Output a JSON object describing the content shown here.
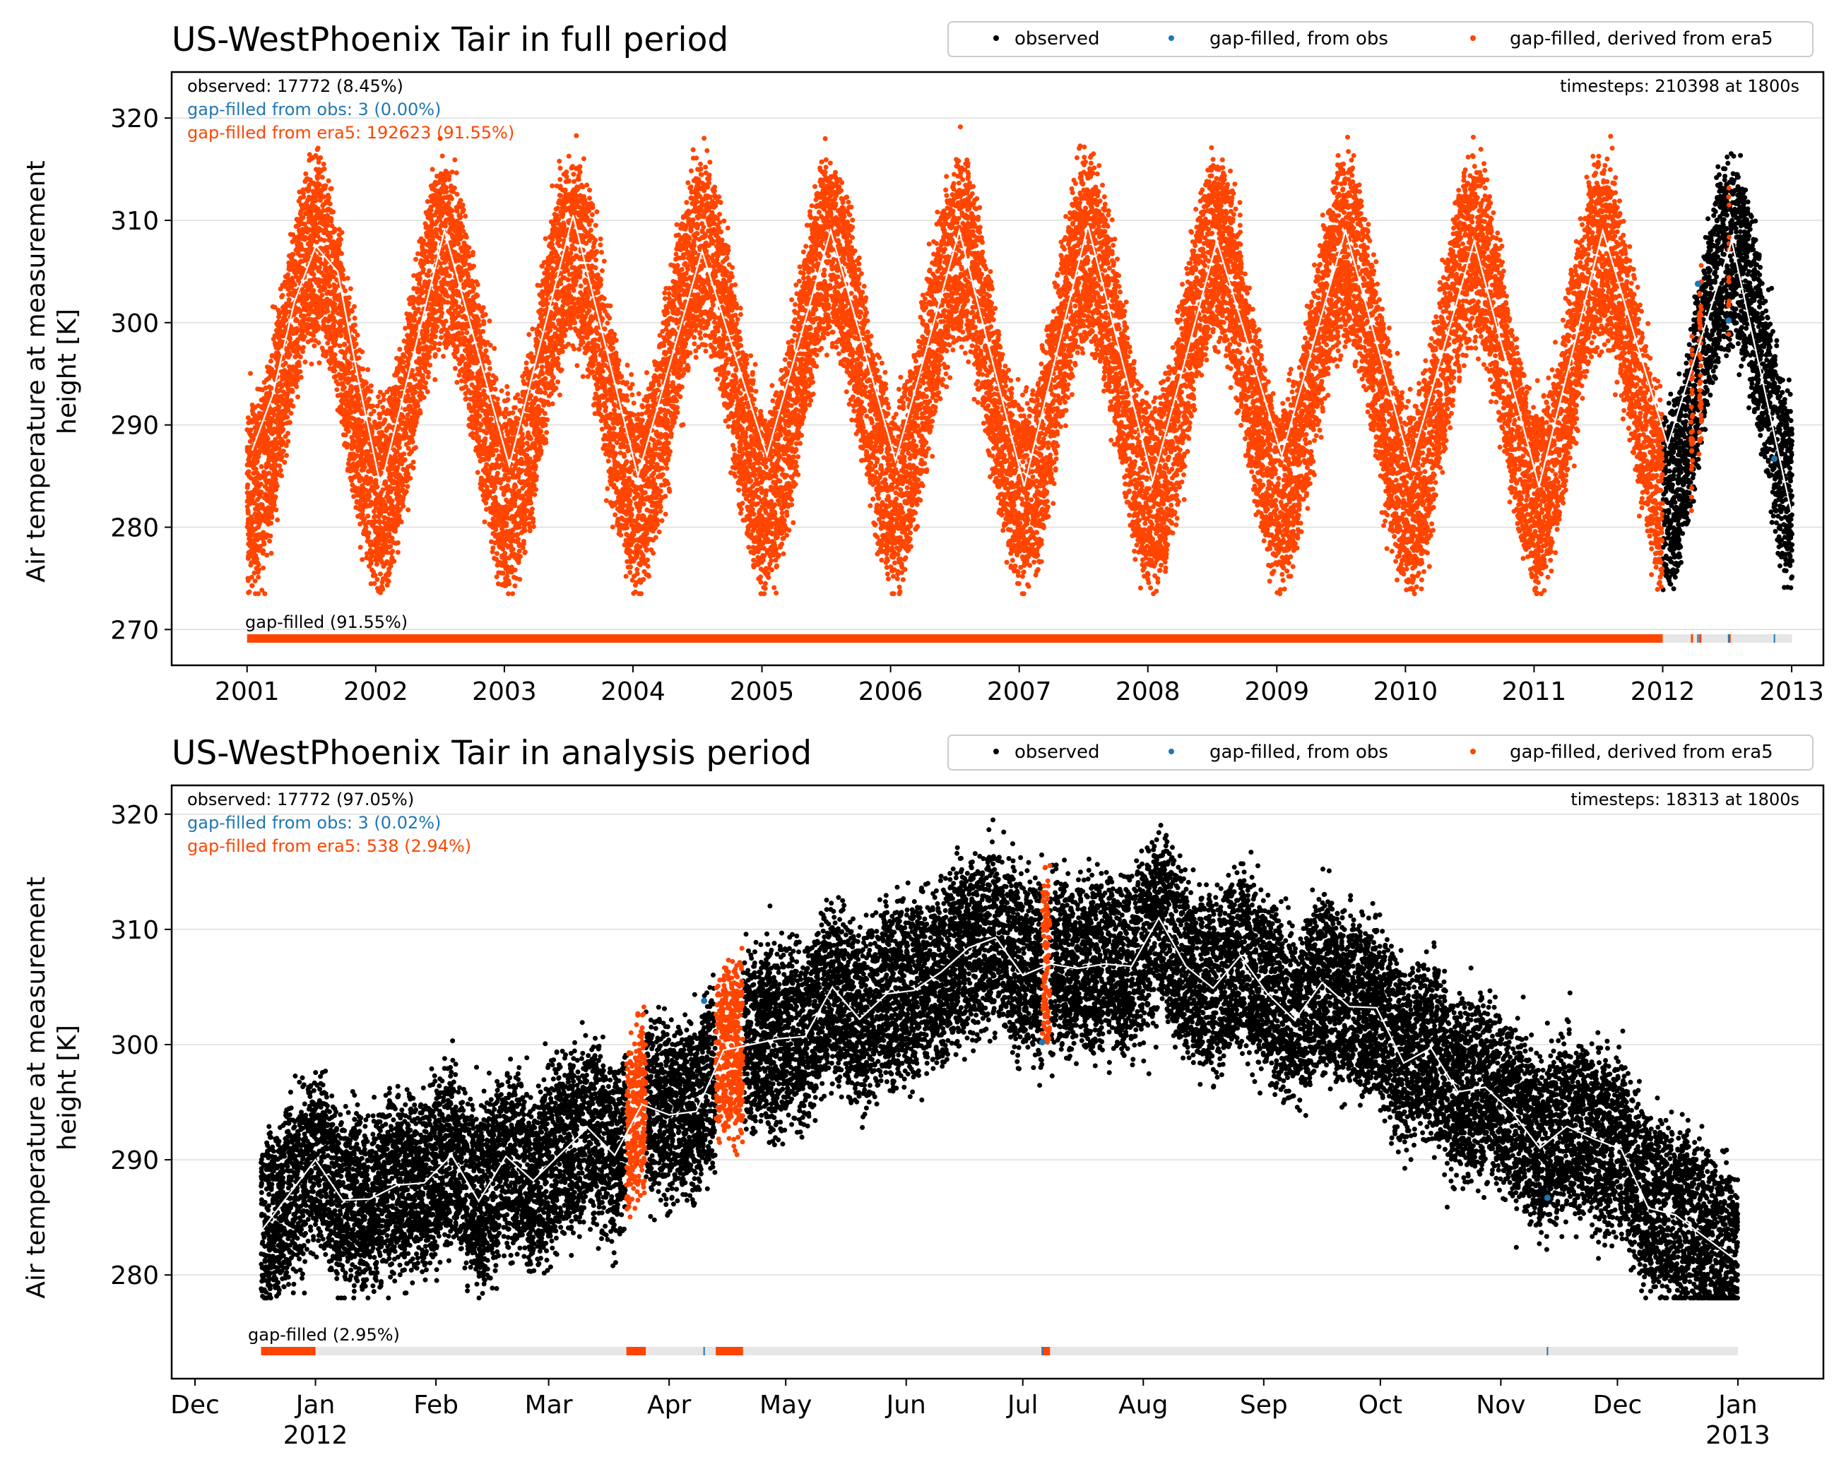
{
  "colors": {
    "observed": "#000000",
    "gapfilled_obs": "#1f77b4",
    "gapfilled_era5": "#ff4500",
    "mean_line": "#ffffff",
    "grid": "#dddddd",
    "gapbar_background": "#e6e6e6"
  },
  "legend": {
    "observed": "observed",
    "gapfilled_obs": "gap-filled, from obs",
    "gapfilled_era5": "gap-filled, derived from era5"
  },
  "chart_data": [
    {
      "type": "scatter",
      "title": "US-WestPhoenix Tair in full period",
      "ylabel_line1": "Air temperature at measurement",
      "ylabel_line2": "height [K]",
      "ylim": [
        266.5,
        324.5
      ],
      "yticks": [
        270,
        280,
        290,
        300,
        310,
        320
      ],
      "ytick_labels": [
        "270",
        "280",
        "290",
        "300",
        "310",
        "320"
      ],
      "xlim": [
        "2000-06-01",
        "2013-04-01"
      ],
      "xticks": [
        "2001-01-01",
        "2002-01-01",
        "2003-01-01",
        "2004-01-01",
        "2005-01-01",
        "2006-01-01",
        "2007-01-01",
        "2008-01-01",
        "2009-01-01",
        "2010-01-01",
        "2011-01-01",
        "2012-01-01",
        "2013-01-01"
      ],
      "xtick_labels": [
        "2001",
        "2002",
        "2003",
        "2004",
        "2005",
        "2006",
        "2007",
        "2008",
        "2009",
        "2010",
        "2011",
        "2012",
        "2013"
      ],
      "grid": "horizontal",
      "legend_placement": "top-right",
      "annotations": {
        "observed": "observed: 17772 (8.45%)",
        "gapfilled_obs": "gap-filled from obs: 3 (0.00%)",
        "gapfilled_era5": "gap-filled from era5: 192623 (91.55%)",
        "timesteps": "timesteps: 210398 at 1800s",
        "gapbar": "gap-filled (91.55%)"
      },
      "data_start": "2001-01-01",
      "data_end": "2013-01-01",
      "observed_start": "2012-01-01",
      "mean_temperature": 295,
      "seasonal_amplitude": 12,
      "peak_day_of_year": 195,
      "era5_spans": [
        [
          "2001-01-01",
          "2011-12-31"
        ],
        [
          "2012-03-21",
          "2012-03-25"
        ],
        [
          "2012-04-13",
          "2012-04-19"
        ],
        [
          "2012-07-06",
          "2012-07-07"
        ]
      ],
      "gapfilled_obs_points": [
        [
          "2012-04-10",
          303.8
        ],
        [
          "2012-07-06",
          300.2
        ],
        [
          "2012-11-13",
          286.7
        ]
      ],
      "series_mean_monthly": [
        {
          "x": "2001-01-15",
          "y": 287.5
        },
        {
          "x": "2001-03-15",
          "y": 293
        },
        {
          "x": "2001-05-15",
          "y": 302
        },
        {
          "x": "2001-07-15",
          "y": 307.5
        },
        {
          "x": "2001-09-15",
          "y": 305
        },
        {
          "x": "2001-11-15",
          "y": 294
        },
        {
          "x": "2002-01-15",
          "y": 284
        },
        {
          "x": "2002-07-15",
          "y": 309
        },
        {
          "x": "2003-01-15",
          "y": 286
        },
        {
          "x": "2003-07-15",
          "y": 310.5
        },
        {
          "x": "2004-01-15",
          "y": 285
        },
        {
          "x": "2004-07-15",
          "y": 307
        },
        {
          "x": "2005-01-15",
          "y": 287
        },
        {
          "x": "2005-07-15",
          "y": 309
        },
        {
          "x": "2006-01-15",
          "y": 286.5
        },
        {
          "x": "2006-07-15",
          "y": 309
        },
        {
          "x": "2007-01-15",
          "y": 284
        },
        {
          "x": "2007-07-15",
          "y": 309.5
        },
        {
          "x": "2008-01-15",
          "y": 284.5
        },
        {
          "x": "2008-07-15",
          "y": 308
        },
        {
          "x": "2009-01-15",
          "y": 287
        },
        {
          "x": "2009-07-15",
          "y": 309
        },
        {
          "x": "2010-01-15",
          "y": 286
        },
        {
          "x": "2010-07-15",
          "y": 308
        },
        {
          "x": "2011-01-15",
          "y": 284
        },
        {
          "x": "2011-07-15",
          "y": 309
        },
        {
          "x": "2012-01-15",
          "y": 288
        },
        {
          "x": "2012-07-15",
          "y": 308
        },
        {
          "x": "2012-12-31",
          "y": 281.5
        }
      ]
    },
    {
      "type": "scatter",
      "title": "US-WestPhoenix Tair in analysis period",
      "ylabel_line1": "Air temperature at measurement",
      "ylabel_line2": "height [K]",
      "ylim": [
        271.0,
        322.5
      ],
      "yticks": [
        280,
        290,
        300,
        310,
        320
      ],
      "ytick_labels": [
        "280",
        "290",
        "300",
        "310",
        "320"
      ],
      "xlim": [
        "2011-11-25",
        "2013-01-23"
      ],
      "xticks": [
        "2011-12-01",
        "2012-01-01",
        "2012-02-01",
        "2012-03-01",
        "2012-04-01",
        "2012-05-01",
        "2012-06-01",
        "2012-07-01",
        "2012-08-01",
        "2012-09-01",
        "2012-10-01",
        "2012-11-01",
        "2012-12-01",
        "2013-01-01"
      ],
      "xtick_labels": [
        "Dec",
        "Jan",
        "Feb",
        "Mar",
        "Apr",
        "May",
        "Jun",
        "Jul",
        "Aug",
        "Sep",
        "Oct",
        "Nov",
        "Dec",
        "Jan"
      ],
      "xtick_year_labels": {
        "2012-01-01": "2012",
        "2013-01-01": "2013"
      },
      "grid": "horizontal",
      "legend_placement": "top-right",
      "annotations": {
        "observed": "observed: 17772 (97.05%)",
        "gapfilled_obs": "gap-filled from obs: 3 (0.02%)",
        "gapfilled_era5": "gap-filled from era5: 538 (2.94%)",
        "timesteps": "timesteps: 18313 at 1800s",
        "gapbar": "gap-filled (2.95%)"
      },
      "data_start": "2011-12-18",
      "data_end": "2012-12-31",
      "era5_spans": [
        [
          "2012-03-21",
          "2012-03-25"
        ],
        [
          "2012-04-13",
          "2012-04-19"
        ],
        [
          "2012-07-06",
          "2012-07-07"
        ]
      ],
      "gapfilled_obs_points": [
        [
          "2012-04-10",
          303.8
        ],
        [
          "2012-07-06",
          300.2
        ],
        [
          "2012-11-13",
          286.7
        ]
      ],
      "series_mean_weekly": [
        {
          "x": "2011-12-18",
          "y": 283.8
        },
        {
          "x": "2012-01-01",
          "y": 290
        },
        {
          "x": "2012-01-08",
          "y": 286.5
        },
        {
          "x": "2012-01-15",
          "y": 286.6
        },
        {
          "x": "2012-01-22",
          "y": 287.8
        },
        {
          "x": "2012-01-29",
          "y": 288
        },
        {
          "x": "2012-02-05",
          "y": 290.4
        },
        {
          "x": "2012-02-12",
          "y": 286.4
        },
        {
          "x": "2012-02-19",
          "y": 290.3
        },
        {
          "x": "2012-02-26",
          "y": 288.2
        },
        {
          "x": "2012-03-04",
          "y": 290.5
        },
        {
          "x": "2012-03-11",
          "y": 292.8
        },
        {
          "x": "2012-03-18",
          "y": 290.4
        },
        {
          "x": "2012-03-25",
          "y": 294.8
        },
        {
          "x": "2012-04-01",
          "y": 293.9
        },
        {
          "x": "2012-04-08",
          "y": 294.2
        },
        {
          "x": "2012-04-15",
          "y": 299.5
        },
        {
          "x": "2012-04-22",
          "y": 300
        },
        {
          "x": "2012-04-29",
          "y": 300.5
        },
        {
          "x": "2012-05-06",
          "y": 300.7
        },
        {
          "x": "2012-05-13",
          "y": 305
        },
        {
          "x": "2012-05-20",
          "y": 302.2
        },
        {
          "x": "2012-05-27",
          "y": 304.4
        },
        {
          "x": "2012-06-03",
          "y": 304.7
        },
        {
          "x": "2012-06-10",
          "y": 306.3
        },
        {
          "x": "2012-06-17",
          "y": 308.4
        },
        {
          "x": "2012-06-24",
          "y": 309.3
        },
        {
          "x": "2012-07-01",
          "y": 306
        },
        {
          "x": "2012-07-08",
          "y": 307
        },
        {
          "x": "2012-07-15",
          "y": 306.6
        },
        {
          "x": "2012-07-22",
          "y": 307
        },
        {
          "x": "2012-07-29",
          "y": 306.8
        },
        {
          "x": "2012-08-05",
          "y": 311
        },
        {
          "x": "2012-08-12",
          "y": 306.8
        },
        {
          "x": "2012-08-19",
          "y": 304.9
        },
        {
          "x": "2012-08-26",
          "y": 307.7
        },
        {
          "x": "2012-09-02",
          "y": 304.4
        },
        {
          "x": "2012-09-09",
          "y": 302.1
        },
        {
          "x": "2012-09-16",
          "y": 305.4
        },
        {
          "x": "2012-09-23",
          "y": 303.3
        },
        {
          "x": "2012-09-30",
          "y": 303.2
        },
        {
          "x": "2012-10-07",
          "y": 298.4
        },
        {
          "x": "2012-10-14",
          "y": 299.7
        },
        {
          "x": "2012-10-21",
          "y": 295.9
        },
        {
          "x": "2012-10-28",
          "y": 296.3
        },
        {
          "x": "2012-11-04",
          "y": 294.1
        },
        {
          "x": "2012-11-11",
          "y": 291
        },
        {
          "x": "2012-11-18",
          "y": 292.9
        },
        {
          "x": "2012-11-25",
          "y": 291.8
        },
        {
          "x": "2012-12-02",
          "y": 290.9
        },
        {
          "x": "2012-12-09",
          "y": 285.8
        },
        {
          "x": "2012-12-16",
          "y": 285.2
        },
        {
          "x": "2012-12-23",
          "y": 283.4
        },
        {
          "x": "2012-12-31",
          "y": 281.4
        }
      ]
    }
  ]
}
